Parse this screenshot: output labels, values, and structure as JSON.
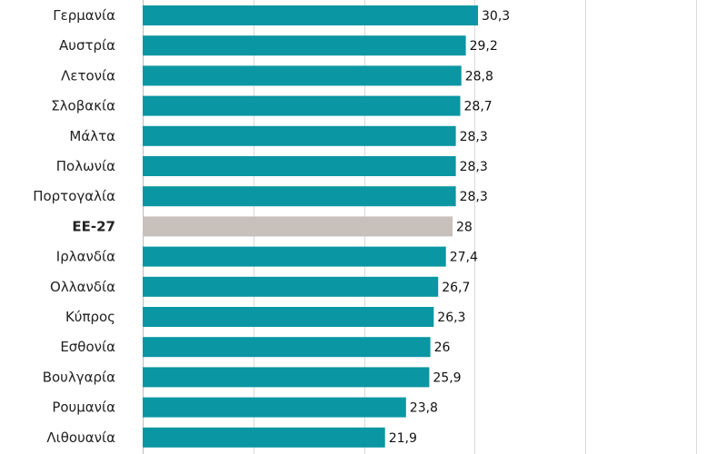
{
  "chart_data": {
    "type": "bar",
    "orientation": "horizontal",
    "categories": [
      "Γερμανία",
      "Αυστρία",
      "Λετονία",
      "Σλοβακία",
      "Μάλτα",
      "Πολωνία",
      "Πορτογαλία",
      "ΕΕ-27",
      "Ιρλανδία",
      "Ολλανδία",
      "Κύπρος",
      "Εσθονία",
      "Βουλγαρία",
      "Ρουμανία",
      "Λιθουανία"
    ],
    "values": [
      30.3,
      29.2,
      28.8,
      28.7,
      28.3,
      28.3,
      28.3,
      28,
      27.4,
      26.7,
      26.3,
      26,
      25.9,
      23.8,
      21.9
    ],
    "value_labels": [
      "30,3",
      "29,2",
      "28,8",
      "28,7",
      "28,3",
      "28,3",
      "28,3",
      "28",
      "27,4",
      "26,7",
      "26,3",
      "26",
      "25,9",
      "23,8",
      "21,9"
    ],
    "highlight": "ΕΕ-27",
    "xlim": [
      0,
      50
    ],
    "grid": true,
    "colors": {
      "bar": "#0a96a3",
      "highlight": "#c8c0bb"
    }
  }
}
